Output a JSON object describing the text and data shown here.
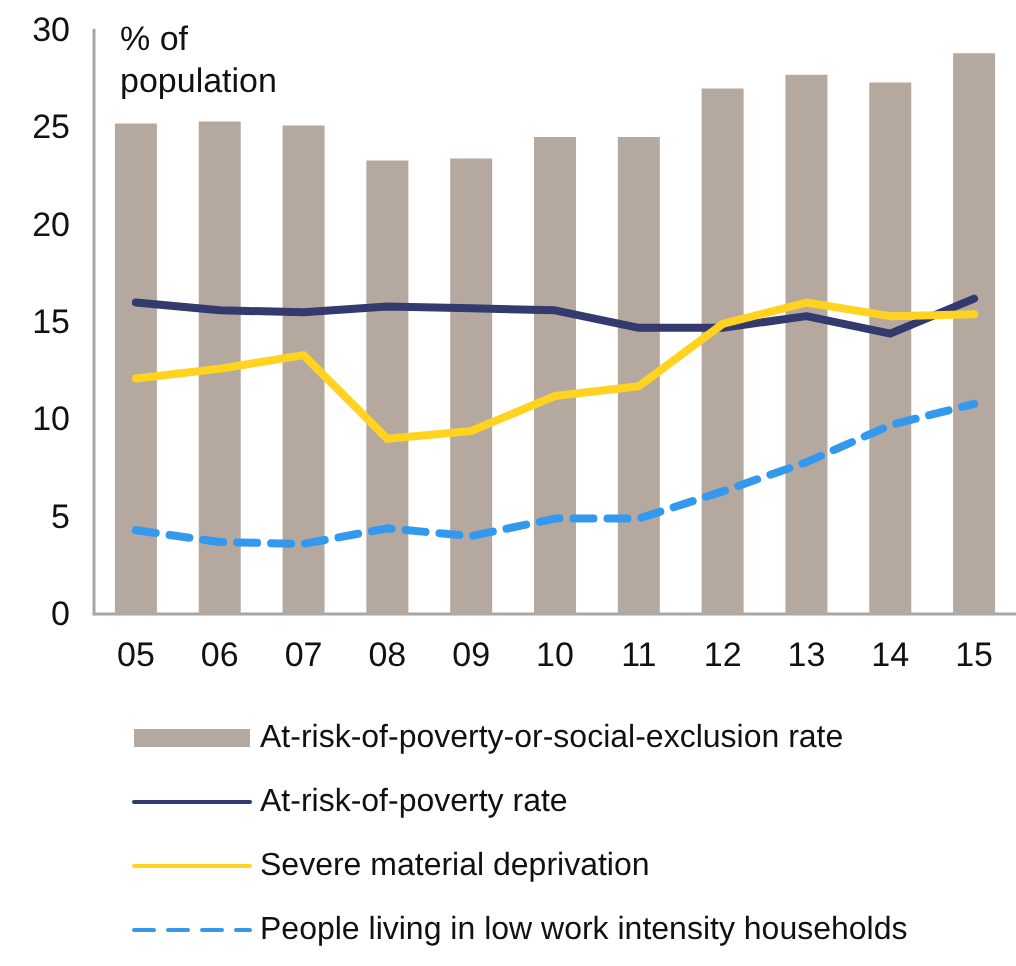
{
  "chart_data": {
    "type": "bar",
    "ylabel": "% of population",
    "categories": [
      "05",
      "06",
      "07",
      "08",
      "09",
      "10",
      "11",
      "12",
      "13",
      "14",
      "15"
    ],
    "series": [
      {
        "name": "At-risk-of-poverty-or-social-exclusion rate",
        "color": "#b5a89f",
        "values": [
          25.2,
          25.3,
          25.1,
          23.3,
          23.4,
          24.5,
          24.5,
          27.0,
          27.7,
          27.3,
          28.8
        ]
      },
      {
        "name": "At-risk-of-poverty rate",
        "type": "line",
        "color": "#323a6e",
        "line_style": "solid",
        "values": [
          16.0,
          15.6,
          15.5,
          15.8,
          15.7,
          15.6,
          14.7,
          14.7,
          15.3,
          14.4,
          16.2
        ]
      },
      {
        "name": "Severe material deprivation",
        "type": "line",
        "color": "#ffd320",
        "line_style": "solid",
        "values": [
          12.1,
          12.6,
          13.3,
          9.0,
          9.4,
          11.2,
          11.7,
          14.9,
          16.0,
          15.3,
          15.4
        ]
      },
      {
        "name": "People living in low work intensity households",
        "type": "line",
        "color": "#3399ee",
        "line_style": "dashed",
        "values": [
          4.3,
          3.7,
          3.6,
          4.4,
          4.0,
          4.9,
          4.9,
          6.3,
          7.8,
          9.7,
          10.8
        ]
      }
    ],
    "ylim": [
      0,
      30
    ],
    "yticks": [
      0,
      5,
      10,
      15,
      20,
      25,
      30
    ],
    "grid": false,
    "legend": "bottom",
    "marker": "none"
  }
}
